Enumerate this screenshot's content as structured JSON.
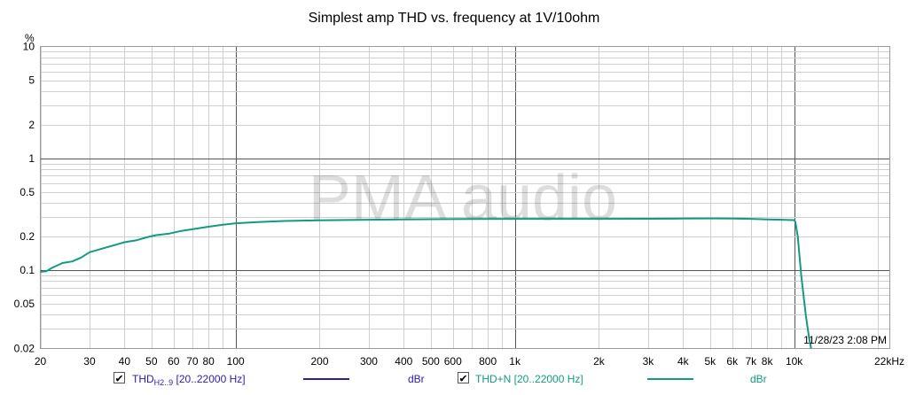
{
  "chart_data": {
    "type": "line",
    "title": "Simplest amp THD vs. frequency at 1V/10ohm",
    "y_unit": "%",
    "x_unit": "kHz",
    "x_scale": "log",
    "y_scale": "log",
    "xlim": [
      20,
      22000
    ],
    "ylim": [
      0.02,
      10
    ],
    "grid": true,
    "watermark": "PMA audio",
    "timestamp": "11/28/23 2:08 PM",
    "x_ticks": [
      {
        "value": 20,
        "label": "20"
      },
      {
        "value": 30,
        "label": "30"
      },
      {
        "value": 40,
        "label": "40"
      },
      {
        "value": 50,
        "label": "50"
      },
      {
        "value": 60,
        "label": "60"
      },
      {
        "value": 70,
        "label": "70"
      },
      {
        "value": 80,
        "label": "80"
      },
      {
        "value": 100,
        "label": "100"
      },
      {
        "value": 200,
        "label": "200"
      },
      {
        "value": 300,
        "label": "300"
      },
      {
        "value": 400,
        "label": "400"
      },
      {
        "value": 500,
        "label": "500"
      },
      {
        "value": 600,
        "label": "600"
      },
      {
        "value": 800,
        "label": "800"
      },
      {
        "value": 1000,
        "label": "1k"
      },
      {
        "value": 2000,
        "label": "2k"
      },
      {
        "value": 3000,
        "label": "3k"
      },
      {
        "value": 4000,
        "label": "4k"
      },
      {
        "value": 5000,
        "label": "5k"
      },
      {
        "value": 6000,
        "label": "6k"
      },
      {
        "value": 7000,
        "label": "7k"
      },
      {
        "value": 8000,
        "label": "8k"
      },
      {
        "value": 10000,
        "label": "10k"
      },
      {
        "value": 22000,
        "label": "22kHz"
      }
    ],
    "y_ticks": [
      {
        "value": 10,
        "label": "10"
      },
      {
        "value": 5,
        "label": "5"
      },
      {
        "value": 2,
        "label": "2"
      },
      {
        "value": 1,
        "label": "1"
      },
      {
        "value": 0.5,
        "label": "0.5"
      },
      {
        "value": 0.2,
        "label": "0.2"
      },
      {
        "value": 0.1,
        "label": "0.1"
      },
      {
        "value": 0.05,
        "label": "0.05"
      },
      {
        "value": 0.02,
        "label": "0.02"
      }
    ],
    "series": [
      {
        "name": "THD+N [20..22000 Hz]",
        "unit": "dBr",
        "color": "#139A80",
        "x": [
          20,
          21,
          22,
          24,
          26,
          28,
          30,
          33,
          36,
          40,
          44,
          48,
          52,
          58,
          64,
          72,
          80,
          90,
          100,
          120,
          150,
          200,
          300,
          400,
          500,
          700,
          1000,
          1500,
          2000,
          3000,
          4000,
          5000,
          6000,
          7000,
          8000,
          9000,
          10000,
          10100,
          10300,
          10600,
          11000,
          11300,
          11500
        ],
        "y": [
          0.097,
          0.098,
          0.105,
          0.116,
          0.12,
          0.13,
          0.145,
          0.155,
          0.165,
          0.178,
          0.185,
          0.197,
          0.206,
          0.213,
          0.225,
          0.235,
          0.245,
          0.255,
          0.263,
          0.27,
          0.276,
          0.28,
          0.283,
          0.285,
          0.286,
          0.287,
          0.288,
          0.288,
          0.288,
          0.289,
          0.29,
          0.291,
          0.29,
          0.288,
          0.285,
          0.283,
          0.281,
          0.27,
          0.2,
          0.09,
          0.04,
          0.025,
          0.02
        ]
      }
    ],
    "legend": [
      {
        "checked": true,
        "label_main": "THD",
        "label_sub": "H2..9",
        "label_range": " [20..22000 Hz]",
        "unit": "dBr",
        "color": "#2A1BB5"
      },
      {
        "checked": true,
        "label_main": "THD+N",
        "label_sub": "",
        "label_range": " [20..22000 Hz]",
        "unit": "dBr",
        "color": "#139A80"
      }
    ]
  }
}
